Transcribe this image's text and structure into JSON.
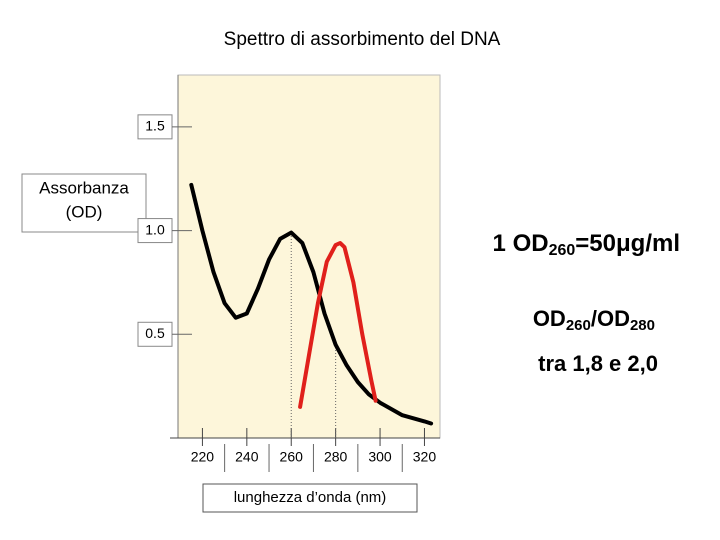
{
  "chart_data": {
    "type": "line",
    "title": "Spettro di assorbimento del DNA",
    "y_label": [
      "Assorbanza",
      "(OD)"
    ],
    "x_label": "lunghezza d’onda (nm)",
    "annotations": [
      [
        "1 OD",
        "260",
        "=50μg/ml"
      ],
      [
        "OD",
        "260",
        "/OD",
        "280"
      ],
      [
        "tra 1,8 e 2,0"
      ]
    ],
    "xlim": [
      209,
      327
    ],
    "ylim": [
      0,
      1.75
    ],
    "xticks": [
      220,
      240,
      260,
      280,
      300,
      320
    ],
    "yticks": [
      1.5,
      {
        "value": 1,
        "label": "1.0"
      },
      0.5
    ],
    "series": [
      {
        "color": "#000000",
        "x": [
          215,
          220,
          225,
          230,
          235,
          240,
          245,
          250,
          255,
          260,
          265,
          270,
          275,
          280,
          285,
          290,
          295,
          300,
          310,
          320,
          323
        ],
        "values": [
          1.22,
          1.0,
          0.8,
          0.65,
          0.58,
          0.6,
          0.72,
          0.86,
          0.96,
          0.99,
          0.94,
          0.8,
          0.6,
          0.45,
          0.35,
          0.27,
          0.21,
          0.17,
          0.11,
          0.08,
          0.07
        ]
      },
      {
        "color": "#e0201b",
        "x": [
          264,
          268,
          272,
          276,
          280,
          282,
          284,
          288,
          292,
          296,
          298
        ],
        "values": [
          0.15,
          0.4,
          0.65,
          0.85,
          0.93,
          0.94,
          0.92,
          0.75,
          0.5,
          0.28,
          0.18
        ]
      }
    ]
  }
}
